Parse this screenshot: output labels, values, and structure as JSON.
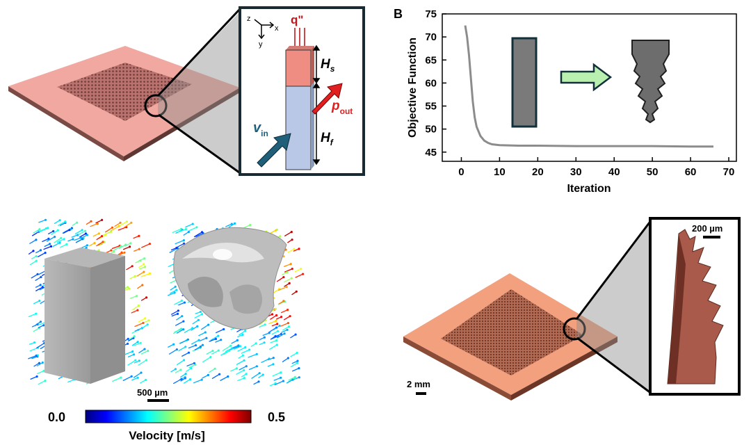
{
  "panel_a": {
    "inset": {
      "axis_z": "z",
      "axis_x": "x",
      "axis_y": "y",
      "heat_flux": "q\"",
      "h_s": "H",
      "h_s_sub": "s",
      "h_f": "H",
      "h_f_sub": "f",
      "v_in": "v",
      "v_in_sub": "in",
      "p_out": "p",
      "p_out_sub": "out"
    }
  },
  "panel_b": {
    "label": "B",
    "chart_data": {
      "type": "line",
      "xlabel": "Iteration",
      "ylabel": "Objective Function",
      "xlim": [
        -5,
        72
      ],
      "ylim": [
        43,
        75
      ],
      "xticks": [
        0,
        10,
        20,
        30,
        40,
        50,
        60,
        70
      ],
      "yticks": [
        45,
        50,
        55,
        60,
        65,
        70,
        75
      ],
      "grid": false,
      "series": [
        {
          "color": "#8c8c8c",
          "x": [
            1,
            1.5,
            2,
            2.5,
            3,
            3.5,
            4,
            5,
            6,
            7,
            8,
            10,
            15,
            20,
            30,
            40,
            50,
            60,
            66
          ],
          "y": [
            72.5,
            70,
            66,
            61,
            56,
            52.5,
            50.5,
            48.5,
            47.5,
            47,
            46.7,
            46.5,
            46.4,
            46.4,
            46.3,
            46.3,
            46.3,
            46.2,
            46.2
          ]
        }
      ]
    }
  },
  "panel_c": {
    "scale_bar": "500 µm",
    "colorbar": {
      "min": "0.0",
      "max": "0.5",
      "label": "Velocity [m/s]"
    }
  },
  "panel_d": {
    "scale_bar_inset": "200 µm",
    "scale_bar_plate": "2 mm"
  },
  "colors": {
    "plate": "#f0a8a0",
    "copper_plate": "#f2a07e",
    "solid_fin": "#ef8d83",
    "fluid_fin": "#b8c8e6",
    "accent_red": "#e02020",
    "accent_blue": "#1f5f7a",
    "arrow_green": "#b9f0b0"
  }
}
